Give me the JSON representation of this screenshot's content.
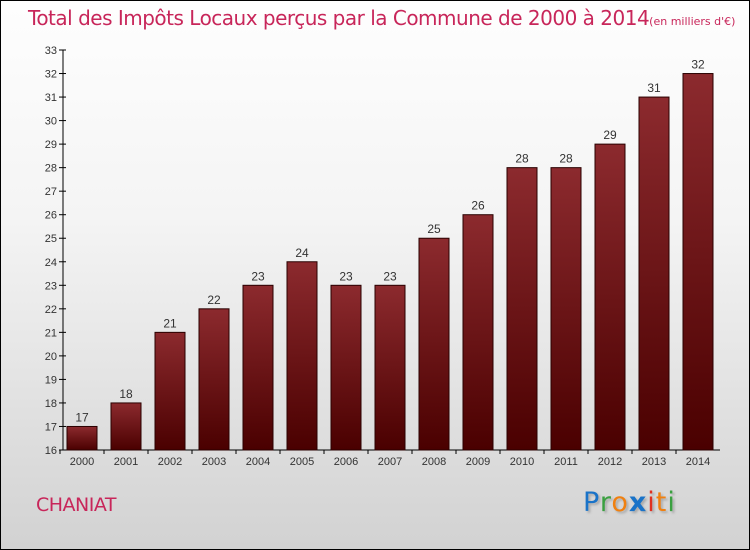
{
  "chart_data": {
    "type": "bar",
    "title": "Total des Impôts Locaux perçus par la Commune de 2000 à 2014",
    "subtitle": "(en milliers d'€)",
    "categories": [
      "2000",
      "2001",
      "2002",
      "2003",
      "2004",
      "2005",
      "2006",
      "2007",
      "2008",
      "2009",
      "2010",
      "2011",
      "2012",
      "2013",
      "2014"
    ],
    "values": [
      17,
      18,
      21,
      22,
      23,
      24,
      23,
      23,
      25,
      26,
      28,
      28,
      29,
      31,
      32
    ],
    "xlabel": "",
    "ylabel": "",
    "ylim": [
      16,
      33
    ],
    "yticks": [
      16,
      17,
      18,
      19,
      20,
      21,
      22,
      23,
      24,
      25,
      26,
      27,
      28,
      29,
      30,
      31,
      32,
      33
    ],
    "grid": false,
    "bar_color": "#7a1a1e"
  },
  "commune": "CHANIAT",
  "logo": {
    "letters": [
      "P",
      "r",
      "o",
      "x",
      "i",
      "t",
      "i"
    ],
    "colors": [
      "#1a73c8",
      "#3aa040",
      "#f08010",
      "#1a73c8",
      "#e03020",
      "#f08010",
      "#3aa040"
    ]
  }
}
